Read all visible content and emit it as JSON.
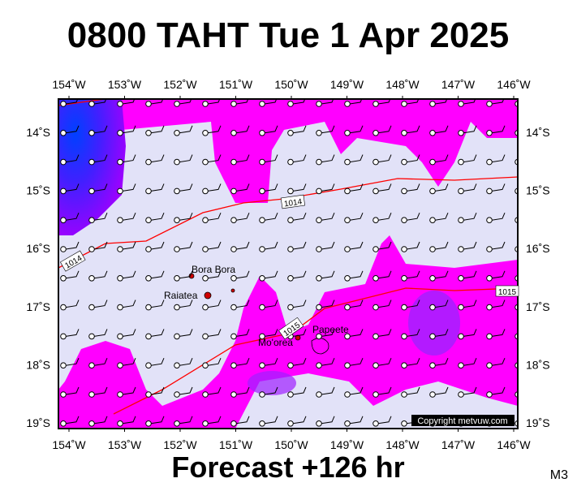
{
  "header": {
    "title": "0800 TAHT Tue 1 Apr 2025"
  },
  "axes": {
    "longitudes": [
      "154˚W",
      "153˚W",
      "152˚W",
      "151˚W",
      "150˚W",
      "149˚W",
      "148˚W",
      "147˚W",
      "146˚W"
    ],
    "latitudes": [
      "14˚S",
      "15˚S",
      "16˚S",
      "17˚S",
      "18˚S",
      "19˚S"
    ]
  },
  "places": [
    "Bora Bora",
    "Raiatea",
    "Mo'orea",
    "Papeete"
  ],
  "isobars": [
    "1014",
    "1014",
    "1015",
    "1015"
  ],
  "copyright": "Copyright metvuw.com",
  "footer": {
    "forecast": "Forecast +126 hr",
    "code": "M3"
  }
}
